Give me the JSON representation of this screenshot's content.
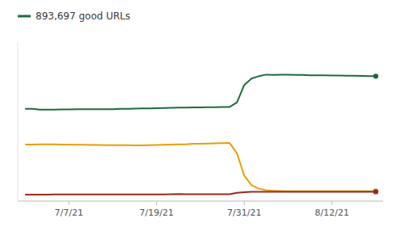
{
  "chart_data": {
    "type": "line",
    "x": [
      0,
      1,
      2,
      3,
      4,
      5,
      6,
      7,
      8,
      9,
      10,
      11,
      12,
      13,
      14,
      15,
      16,
      17,
      18,
      19,
      20,
      21,
      22,
      23,
      24,
      25,
      26,
      27,
      28,
      29,
      30,
      31,
      32,
      33,
      34,
      35,
      36,
      37,
      38,
      39,
      40,
      41,
      42,
      43,
      44,
      45,
      46,
      47,
      48
    ],
    "series": [
      {
        "name": "893,697 good URLs",
        "color": "#1e6b3c",
        "marker": "end",
        "values": [
          0.58,
          0.58,
          0.575,
          0.575,
          0.575,
          0.576,
          0.576,
          0.577,
          0.577,
          0.577,
          0.578,
          0.578,
          0.578,
          0.58,
          0.58,
          0.581,
          0.582,
          0.583,
          0.584,
          0.585,
          0.586,
          0.587,
          0.588,
          0.589,
          0.589,
          0.59,
          0.59,
          0.591,
          0.592,
          0.62,
          0.73,
          0.77,
          0.785,
          0.795,
          0.793,
          0.795,
          0.795,
          0.793,
          0.793,
          0.791,
          0.791,
          0.791,
          0.789,
          0.789,
          0.788,
          0.788,
          0.787,
          0.786,
          0.785
        ]
      },
      {
        "color": "#e8a000",
        "marker": "end",
        "values": [
          0.355,
          0.355,
          0.357,
          0.357,
          0.356,
          0.355,
          0.355,
          0.354,
          0.354,
          0.353,
          0.353,
          0.352,
          0.352,
          0.351,
          0.351,
          0.35,
          0.35,
          0.352,
          0.353,
          0.354,
          0.355,
          0.356,
          0.357,
          0.36,
          0.361,
          0.362,
          0.363,
          0.364,
          0.365,
          0.3,
          0.16,
          0.1,
          0.078,
          0.068,
          0.065,
          0.063,
          0.062,
          0.062,
          0.062,
          0.062,
          0.062,
          0.062,
          0.062,
          0.062,
          0.062,
          0.062,
          0.062,
          0.062,
          0.062
        ]
      },
      {
        "color": "#9b2a1a",
        "marker": "end",
        "values": [
          0.04,
          0.04,
          0.041,
          0.041,
          0.042,
          0.042,
          0.042,
          0.042,
          0.042,
          0.042,
          0.042,
          0.042,
          0.042,
          0.042,
          0.042,
          0.042,
          0.042,
          0.042,
          0.042,
          0.042,
          0.043,
          0.045,
          0.043,
          0.043,
          0.043,
          0.043,
          0.043,
          0.043,
          0.043,
          0.052,
          0.056,
          0.058,
          0.059,
          0.059,
          0.059,
          0.059,
          0.059,
          0.059,
          0.059,
          0.059,
          0.059,
          0.059,
          0.059,
          0.059,
          0.059,
          0.059,
          0.059,
          0.059,
          0.059
        ]
      }
    ],
    "xlim": [
      -1,
      49
    ],
    "xticks": [
      {
        "value": 6,
        "label": "7/7/21"
      },
      {
        "value": 18,
        "label": "7/19/21"
      },
      {
        "value": 30,
        "label": "7/31/21"
      },
      {
        "value": 42,
        "label": "8/12/21"
      }
    ],
    "ylim": [
      0.0,
      1.0
    ],
    "yticks": [],
    "tick_labels": "x",
    "grid": false,
    "legend": "upper left"
  }
}
